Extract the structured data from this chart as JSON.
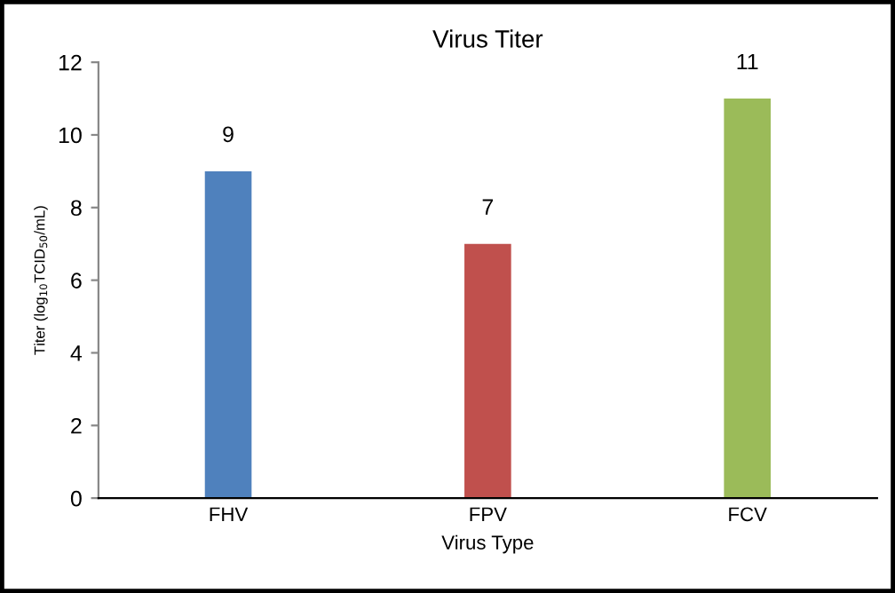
{
  "chart_data": {
    "type": "bar",
    "title": "Virus Titer",
    "xlabel": "Virus Type",
    "ylabel": "Titer (log$_{10}$TCID$_{50}$/mL)",
    "categories": [
      "FHV",
      "FPV",
      "FCV"
    ],
    "values": [
      9,
      7,
      11
    ],
    "colors": [
      "#4f81bd",
      "#c0504d",
      "#9bbb59"
    ],
    "ylim": [
      0,
      12
    ],
    "yticks": [
      0,
      2,
      4,
      6,
      8,
      10,
      12
    ],
    "data_labels": true,
    "grid": false,
    "legend": false
  }
}
